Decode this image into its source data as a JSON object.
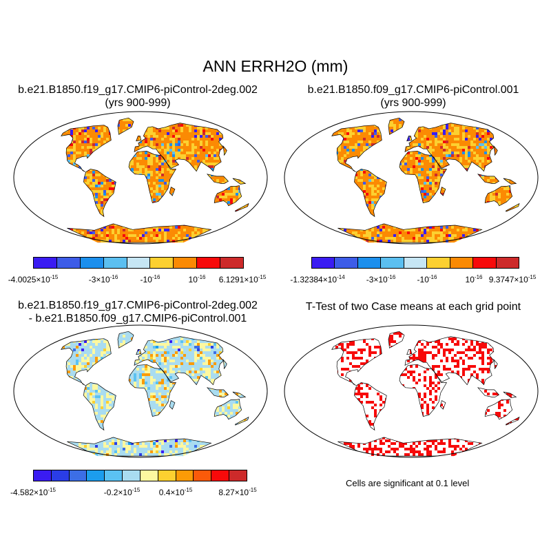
{
  "title": "ANN ERRH2O (mm)",
  "panels": [
    {
      "title_line1": "b.e21.B1850.f19_g17.CMIP6-piControl-2deg.002",
      "title_line2": "(yrs 900-999)",
      "colorbar": {
        "colors": [
          "#3a1cf2",
          "#3d5ce8",
          "#1c8fed",
          "#5bbff0",
          "#c6e6f4",
          "#fcd030",
          "#fb8a03",
          "#f70a0a",
          "#cd2a2a"
        ],
        "labels": [
          {
            "mant": "-4.0025",
            "exp": "-15"
          },
          {
            "mant": "-3",
            "exp": "-16"
          },
          {
            "mant": "-10",
            "exp": "-16"
          },
          {
            "mant": "10",
            "exp": "-16"
          },
          {
            "mant": "6.1291",
            "exp": "-15"
          }
        ]
      }
    },
    {
      "title_line1": "b.e21.B1850.f09_g17.CMIP6-piControl.001",
      "title_line2": "(yrs 900-999)",
      "colorbar": {
        "colors": [
          "#3a1cf2",
          "#3d5ce8",
          "#1c8fed",
          "#5bbff0",
          "#c6e6f4",
          "#fcd030",
          "#fb8a03",
          "#f70a0a",
          "#cd2a2a"
        ],
        "labels": [
          {
            "mant": "-1.32384",
            "exp": "-14"
          },
          {
            "mant": "-3",
            "exp": "-16"
          },
          {
            "mant": "-10",
            "exp": "-16"
          },
          {
            "mant": "10",
            "exp": "-16"
          },
          {
            "mant": "9.3747",
            "exp": "-15"
          }
        ]
      }
    },
    {
      "title_line1": "b.e21.B1850.f19_g17.CMIP6-piControl-2deg.002",
      "title_line2": "- b.e21.B1850.f09_g17.CMIP6-piControl.001",
      "colorbar": {
        "colors": [
          "#3a1cf2",
          "#2a3de6",
          "#3c6ee6",
          "#1c9ded",
          "#5bc2f2",
          "#a9dcf0",
          "#fdf8a0",
          "#fcd030",
          "#fb9b06",
          "#fb5a0a",
          "#f70a0a",
          "#cd2a2a"
        ],
        "labels": [
          {
            "mant": "-4.582",
            "exp": "-15"
          },
          {
            "mant": "-0.2",
            "exp": "-15"
          },
          {
            "mant": "0.4",
            "exp": "-15"
          },
          {
            "mant": "8.27",
            "exp": "-15"
          }
        ]
      }
    },
    {
      "title_line1": "T-Test of two Case means at each grid point",
      "note": "Cells are significant at 0.1 level"
    }
  ],
  "colors": {
    "ocean": "#ffffff",
    "land_case": "#fcae1e",
    "land_diff": "#bde0e8",
    "land_ttest": "#ffffff",
    "significant": "#f70a0a",
    "coast": "#000000"
  }
}
